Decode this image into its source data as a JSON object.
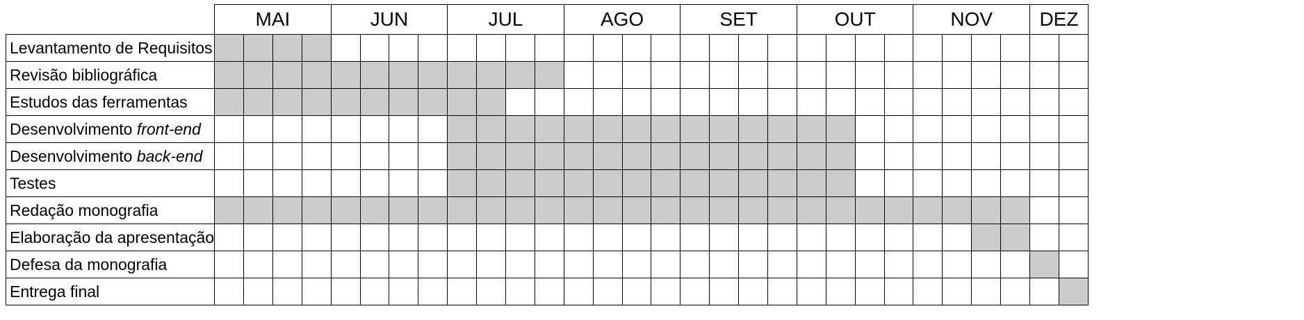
{
  "months": [
    {
      "label": "MAI",
      "weeks": 4
    },
    {
      "label": "JUN",
      "weeks": 4
    },
    {
      "label": "JUL",
      "weeks": 4
    },
    {
      "label": "AGO",
      "weeks": 4
    },
    {
      "label": "SET",
      "weeks": 4
    },
    {
      "label": "OUT",
      "weeks": 4
    },
    {
      "label": "NOV",
      "weeks": 4
    },
    {
      "label": "DEZ",
      "weeks": 2
    }
  ],
  "fill_color": "#cccccc",
  "tasks": [
    {
      "label": "Levantamento de Requisitos",
      "start_week": 1,
      "end_week": 4
    },
    {
      "label": "Revisão bibliográfica",
      "start_week": 1,
      "end_week": 12
    },
    {
      "label": "Estudos das ferramentas",
      "start_week": 1,
      "end_week": 10
    },
    {
      "label": "Desenvolvimento ",
      "label_em": "front-end",
      "start_week": 9,
      "end_week": 22
    },
    {
      "label": "Desenvolvimento ",
      "label_em": "back-end",
      "start_week": 9,
      "end_week": 22
    },
    {
      "label": "Testes",
      "start_week": 9,
      "end_week": 22
    },
    {
      "label": "Redação monografia",
      "start_week": 1,
      "end_week": 28
    },
    {
      "label": "Elaboração da apresentação",
      "start_week": 27,
      "end_week": 28
    },
    {
      "label": "Defesa da monografia",
      "start_week": 29,
      "end_week": 29
    },
    {
      "label": "Entrega final",
      "start_week": 30,
      "end_week": 30
    }
  ]
}
